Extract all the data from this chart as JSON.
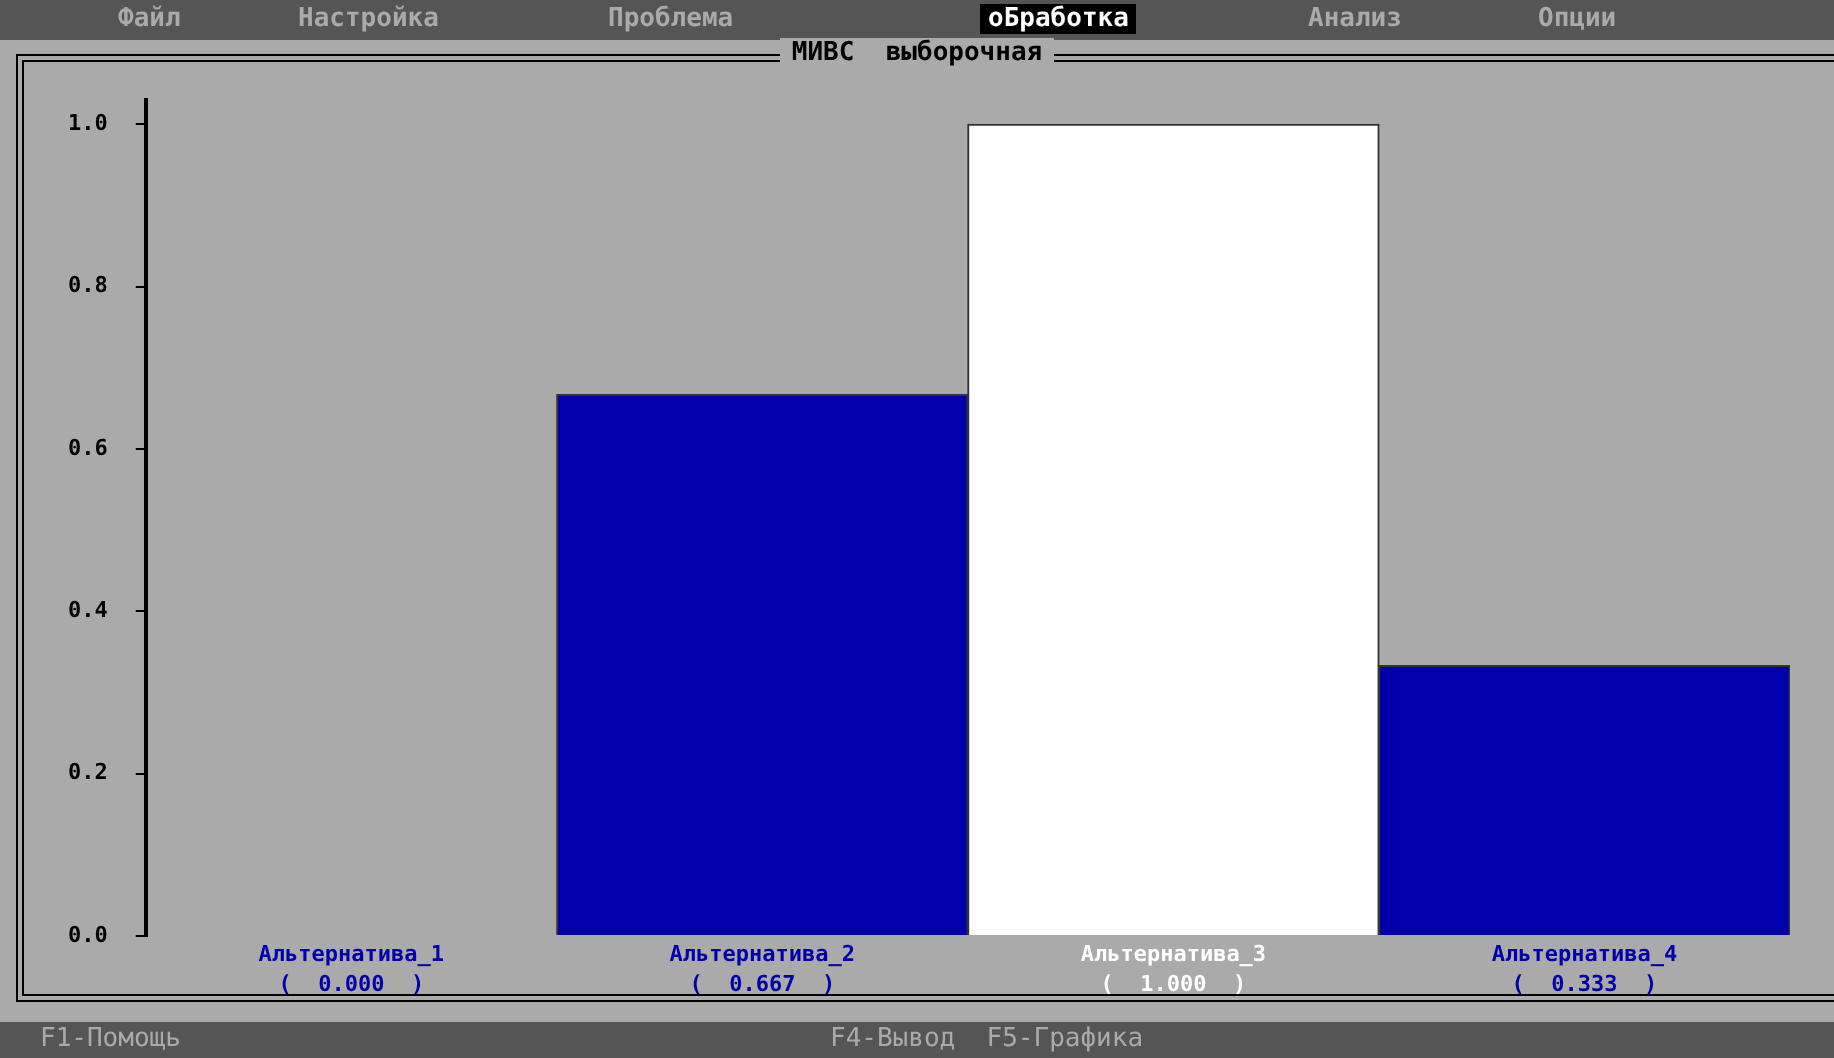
{
  "chart_data": {
    "type": "bar",
    "title": "МИВС  выборочная",
    "categories": [
      "Альтернатива_1",
      "Альтернатива_2",
      "Альтернатива_3",
      "Альтернатива_4"
    ],
    "values": [
      0.0,
      0.667,
      1.0,
      0.333
    ],
    "value_labels": [
      "(  0.000  )",
      "(  0.667  )",
      "(  1.000  )",
      "(  0.333  )"
    ],
    "colors": [
      "#0000aa",
      "#0000aa",
      "#ffffff",
      "#0000aa"
    ],
    "ylim": [
      0,
      1.03
    ],
    "yticks": [
      {
        "value": 0,
        "label": "0.0"
      },
      {
        "value": 0.2,
        "label": "0.2"
      },
      {
        "value": 0.4,
        "label": "0.4"
      },
      {
        "value": 0.6,
        "label": "0.6"
      },
      {
        "value": 0.8,
        "label": "0.8"
      },
      {
        "value": 1,
        "label": "1.0"
      }
    ],
    "grid": false,
    "legend": false,
    "annotations": [
      "Файл",
      "Настройка",
      "Проблема",
      "оБработка",
      "Анализ",
      "Опции",
      "F1-Помощь",
      "F4-Вывод  F5-Графика"
    ]
  }
}
